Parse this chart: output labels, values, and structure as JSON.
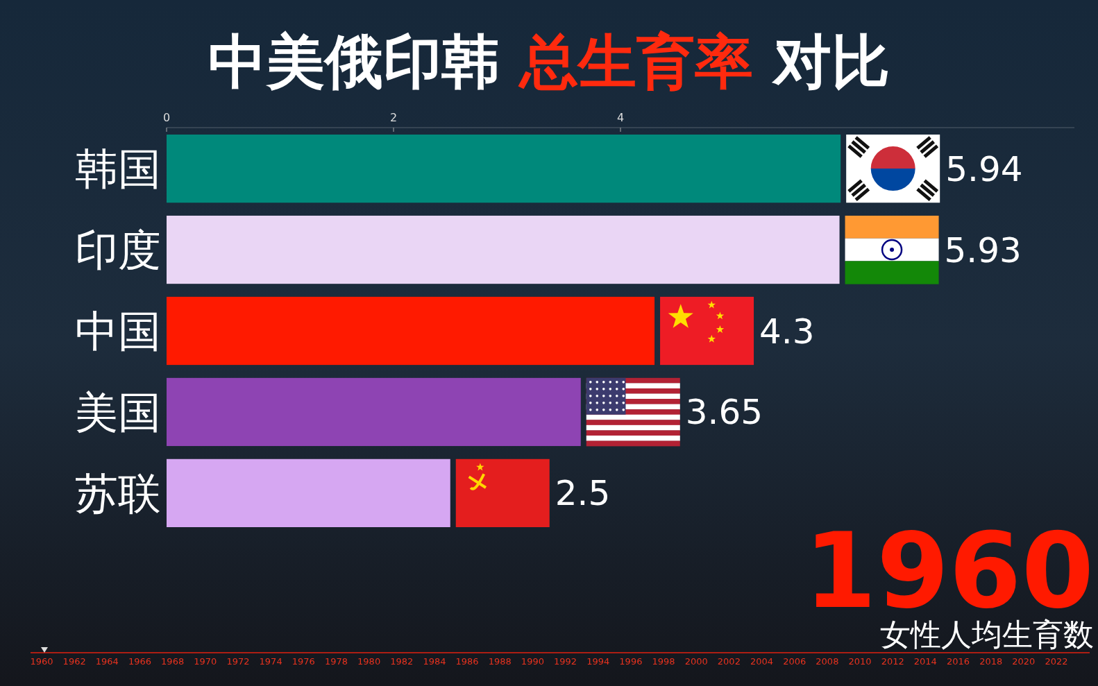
{
  "chart_data": {
    "type": "bar",
    "orientation": "horizontal",
    "title": "中美俄印韩 总生育率 对比",
    "categories": [
      "韩国",
      "印度",
      "中国",
      "美国",
      "苏联"
    ],
    "values": [
      5.94,
      5.93,
      4.3,
      3.65,
      2.5
    ],
    "colors": [
      "#00897b",
      "#ead6f5",
      "#ff1a00",
      "#8e44b3",
      "#d6a7f2"
    ],
    "xlim": [
      0,
      8
    ],
    "xticks": [
      0,
      2,
      4
    ],
    "data_labels": true,
    "annotations": [
      "1960",
      "女性人均生育数",
      "1960",
      "1962",
      "1964",
      "1966",
      "1968",
      "1970",
      "1972",
      "1974",
      "1976",
      "1978",
      "1980",
      "1982",
      "1984",
      "1986",
      "1988",
      "1990",
      "1992",
      "1994",
      "1996",
      "1998",
      "2000",
      "2002",
      "2004",
      "2006",
      "2008",
      "2010",
      "2012",
      "2014",
      "2016",
      "2018",
      "2020",
      "2022"
    ]
  }
}
